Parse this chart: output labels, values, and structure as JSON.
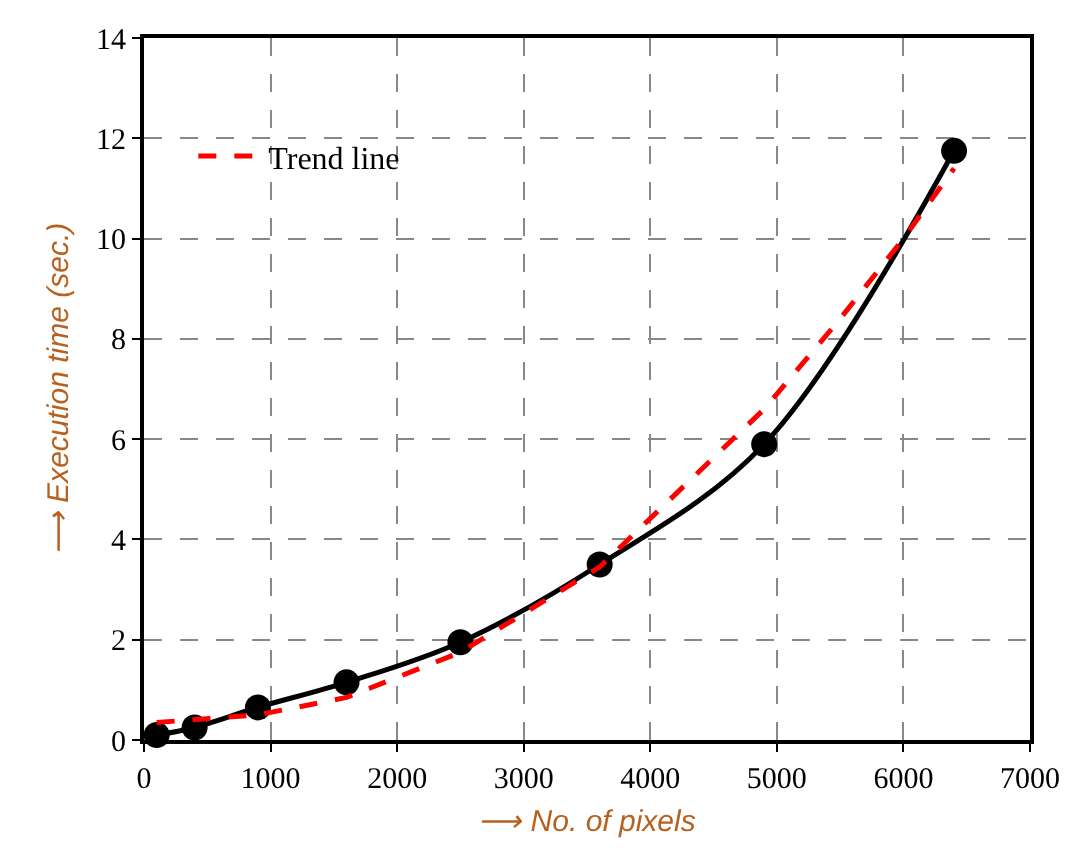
{
  "chart_data": {
    "type": "line",
    "xlabel": "⟶ No. of pixels",
    "ylabel": "⟶ Execution time (sec.)",
    "xlim": [
      0,
      7000
    ],
    "xticks": [
      0,
      1000,
      2000,
      3000,
      4000,
      5000,
      6000,
      7000
    ],
    "ylim": [
      0,
      14
    ],
    "yticks": [
      0,
      2,
      4,
      6,
      8,
      10,
      12,
      14
    ],
    "grid": true,
    "legend": "top left",
    "series": [
      {
        "color": "#000000",
        "marker": "circle",
        "line_style": "solid",
        "x": [
          100,
          400,
          900,
          1600,
          2500,
          3600,
          4900,
          6400
        ],
        "values": [
          0.1,
          0.25,
          0.65,
          1.15,
          1.95,
          3.5,
          5.9,
          11.75
        ]
      },
      {
        "name": "Trend line",
        "color": "#ff0000",
        "marker": "none",
        "line_style": "dashed",
        "x": [
          100,
          900,
          1600,
          2500,
          3600,
          4900,
          5500,
          6000,
          6400
        ],
        "values": [
          0.35,
          0.5,
          0.85,
          1.75,
          3.45,
          6.6,
          8.4,
          10.0,
          11.4
        ]
      }
    ]
  }
}
